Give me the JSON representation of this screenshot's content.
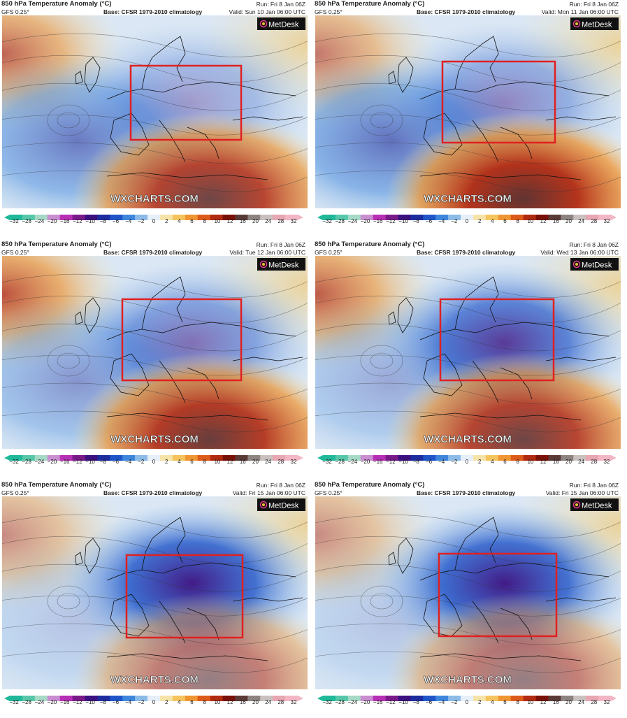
{
  "panels": [
    {
      "title": "850 hPa Temperature Anomaly (°C)",
      "model": "GFS 0.25°",
      "base": "Base: CFSR 1979-2010 climatology",
      "run": "Run: Fri 8 Jan 06Z",
      "valid": "Valid: Sun 10 Jan 06:00 UTC",
      "logo": "MetDesk",
      "watermark": "WXCHARTS.COM",
      "anomaly": {
        "west_cold": 0.6,
        "east_cold": 0.35,
        "sw_warm": 0.85,
        "nw_warm": 0.7
      }
    },
    {
      "title": "850 hPa Temperature Anomaly (°C)",
      "model": "GFS 0.25°",
      "base": "Base: CFSR 1979-2010 climatology",
      "run": "Run: Fri 8 Jan 06Z",
      "valid": "Valid: Mon 11 Jan 06:00 UTC",
      "logo": "MetDesk",
      "watermark": "WXCHARTS.COM",
      "anomaly": {
        "west_cold": 0.65,
        "east_cold": 0.45,
        "sw_warm": 0.95,
        "nw_warm": 0.6
      }
    },
    {
      "title": "850 hPa Temperature Anomaly (°C)",
      "model": "GFS 0.25°",
      "base": "Base: CFSR 1979-2010 climatology",
      "run": "Run: Fri 8 Jan 06Z",
      "valid": "Valid: Tue 12 Jan 06:00 UTC",
      "logo": "MetDesk",
      "watermark": "WXCHARTS.COM",
      "anomaly": {
        "west_cold": 0.45,
        "east_cold": 0.55,
        "sw_warm": 0.9,
        "nw_warm": 0.8
      }
    },
    {
      "title": "850 hPa Temperature Anomaly (°C)",
      "model": "GFS 0.25°",
      "base": "Base: CFSR 1979-2010 climatology",
      "run": "Run: Fri 8 Jan 06Z",
      "valid": "Valid: Wed 13 Jan 06:00 UTC",
      "logo": "MetDesk",
      "watermark": "WXCHARTS.COM",
      "anomaly": {
        "west_cold": 0.35,
        "east_cold": 0.8,
        "sw_warm": 0.85,
        "nw_warm": 0.75
      }
    },
    {
      "title": "850 hPa Temperature Anomaly (°C)",
      "model": "GFS 0.25°",
      "base": "Base: CFSR 1979-2010 climatology",
      "run": "Run: Fri 8 Jan 06Z",
      "valid": "Valid: Fri 15 Jan 06:00 UTC",
      "logo": "MetDesk",
      "watermark": "WXCHARTS.COM",
      "anomaly": {
        "west_cold": 0.2,
        "east_cold": 0.95,
        "sw_warm": 0.55,
        "nw_warm": 0.5
      }
    },
    {
      "title": "850 hPa Temperature Anomaly (°C)",
      "model": "GFS 0.25°",
      "base": "Base: CFSR 1979-2010 climatology",
      "run": "Run: Fri 8 Jan 06Z",
      "valid": "Valid: Fri 15 Jan 06:00 UTC",
      "logo": "MetDesk",
      "watermark": "WXCHARTS.COM",
      "anomaly": {
        "west_cold": 0.2,
        "east_cold": 0.95,
        "sw_warm": 0.55,
        "nw_warm": 0.5
      }
    }
  ],
  "colorbar": {
    "ticks": [
      "−32",
      "−28",
      "−24",
      "−20",
      "−16",
      "−12",
      "−10",
      "−8",
      "−6",
      "−4",
      "−2",
      "0",
      "2",
      "4",
      "6",
      "8",
      "10",
      "12",
      "16",
      "20",
      "24",
      "28",
      "32"
    ],
    "colors": [
      "#1fb89a",
      "#56c7a8",
      "#a6d9c6",
      "#c98ed0",
      "#b72fb4",
      "#7a1a8a",
      "#3b1080",
      "#1d2c9e",
      "#1f55c9",
      "#3d86dc",
      "#8cbbe8",
      "#e6eef8",
      "#f6e3a8",
      "#f5c45e",
      "#ef9532",
      "#dd5b19",
      "#b22a10",
      "#7a1108",
      "#5a3a37",
      "#8d8381",
      "#c9c1bf",
      "#e6a6b2",
      "#f2b6c4"
    ]
  },
  "highlight_box_color": "#e02020"
}
